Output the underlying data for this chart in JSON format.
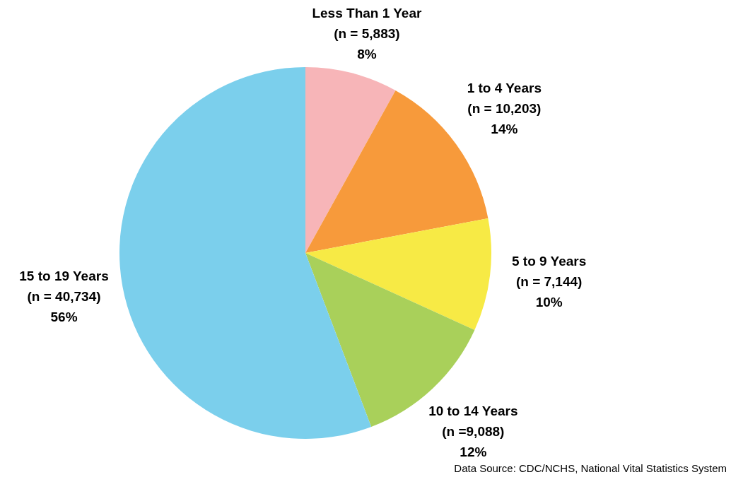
{
  "chart_data": {
    "type": "pie",
    "categories": [
      "Less Than 1 Year",
      "1 to 4 Years",
      "5 to 9 Years",
      "10 to 14 Years",
      "15 to 19 Years"
    ],
    "values": [
      5883,
      10203,
      7144,
      9088,
      40734
    ],
    "value_labels": [
      "(n = 5,883)\n8%",
      "(n = 10,203)\n14%",
      "(n = 7,144)\n10%",
      "(n =9,088)\n12%",
      "(n = 40,734)\n56%"
    ],
    "colors": [
      "#f7b5b8",
      "#f79a3b",
      "#f7ea45",
      "#a9d05a",
      "#7bcfec"
    ],
    "legend": false,
    "annotations": [
      "Data Source: CDC/NCHS, National Vital Statistics System"
    ]
  }
}
